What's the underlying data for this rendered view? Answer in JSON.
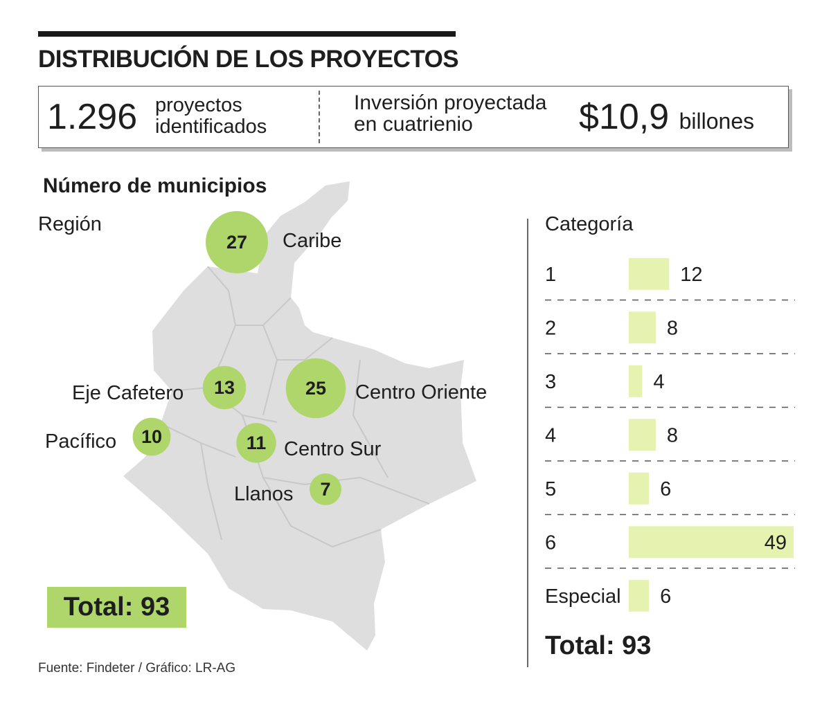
{
  "title": "DISTRIBUCIÓN DE LOS PROYECTOS",
  "summary": {
    "projects_count": "1.296",
    "projects_label_line1": "proyectos",
    "projects_label_line2": "identificados",
    "investment_label_line1": "Inversión proyectada",
    "investment_label_line2": "en cuatrienio",
    "investment_value": "$10,9",
    "investment_unit": "billones"
  },
  "section_title": "Número de municipios",
  "source": "Fuente: Findeter / Gráfico: LR-AG",
  "colors": {
    "bubble": "#aed66a",
    "bar": "#e6f2b0",
    "map": "#dedede",
    "total_box": "#aed66a",
    "text": "#1e1e1e"
  },
  "chart_data": [
    {
      "type": "bubble-map",
      "title": "Región",
      "categories": [
        "Caribe",
        "Centro Oriente",
        "Eje Cafetero",
        "Centro Sur",
        "Pacífico",
        "Llanos"
      ],
      "values": [
        27,
        25,
        13,
        11,
        10,
        7
      ],
      "total_label": "Total: 93"
    },
    {
      "type": "bar",
      "orientation": "horizontal",
      "title": "Categoría",
      "categories": [
        "1",
        "2",
        "3",
        "4",
        "5",
        "6",
        "Especial"
      ],
      "values": [
        12,
        8,
        4,
        8,
        6,
        49,
        6
      ],
      "xlim": [
        0,
        49
      ],
      "total_label": "Total: 93"
    }
  ]
}
